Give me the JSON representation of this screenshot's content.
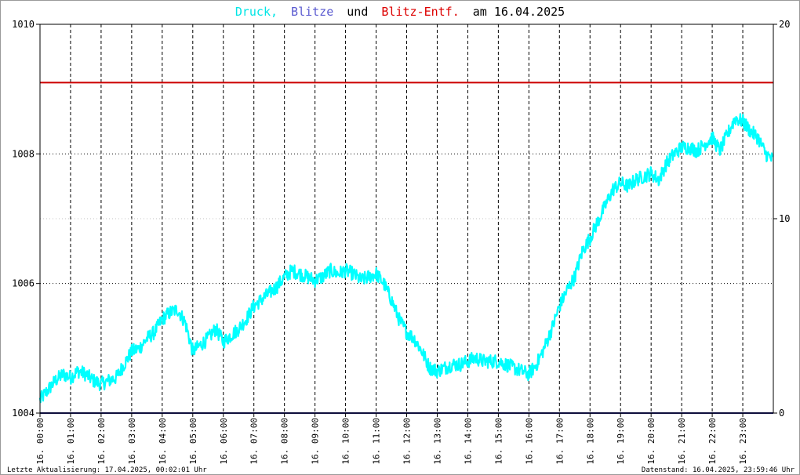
{
  "title": {
    "parts": [
      {
        "text": "Druck,",
        "color": "#00e5e5"
      },
      {
        "text": "Blitze",
        "color": "#5a5ad0"
      },
      {
        "text": "und",
        "color": "#000000"
      },
      {
        "text": "Blitz-Entf.",
        "color": "#dd0000"
      },
      {
        "text": "am 16.04.2025",
        "color": "#000000"
      }
    ]
  },
  "footer": {
    "left": "Letzte Aktualisierung: 17.04.2025, 00:02:01 Uhr",
    "right": "Datenstand: 16.04.2025, 23:59:46 Uhr"
  },
  "chart_data": {
    "type": "line",
    "title": "Druck, Blitze und Blitz-Entf. am 16.04.2025",
    "x_unit": "hour of 16.04.2025",
    "xlim": [
      0,
      24
    ],
    "x_ticks": [
      "16. 00:00",
      "16. 01:00",
      "16. 02:00",
      "16. 03:00",
      "16. 04:00",
      "16. 05:00",
      "16. 06:00",
      "16. 07:00",
      "16. 08:00",
      "16. 09:00",
      "16. 10:00",
      "16. 11:00",
      "16. 12:00",
      "16. 13:00",
      "16. 14:00",
      "16. 15:00",
      "16. 16:00",
      "16. 17:00",
      "16. 18:00",
      "16. 19:00",
      "16. 20:00",
      "16. 21:00",
      "16. 22:00",
      "16. 23:00"
    ],
    "y_left": {
      "ylim": [
        1004,
        1010
      ],
      "ticks": [
        "1004",
        "1006",
        "1008",
        "1010"
      ]
    },
    "y_right": {
      "ylim": [
        0,
        20
      ],
      "ticks": [
        "0",
        "10",
        "20"
      ]
    },
    "grid": true,
    "series": [
      {
        "name": "Druck",
        "axis": "left",
        "color": "#00ffff",
        "x": [
          0,
          0.25,
          0.5,
          0.75,
          1,
          1.25,
          1.5,
          1.75,
          2,
          2.25,
          2.5,
          2.75,
          3,
          3.25,
          3.5,
          3.75,
          4,
          4.25,
          4.5,
          4.75,
          5,
          5.25,
          5.5,
          5.75,
          6,
          6.25,
          6.5,
          6.75,
          7,
          7.25,
          7.5,
          7.75,
          8,
          8.25,
          8.5,
          8.75,
          9,
          9.25,
          9.5,
          9.75,
          10,
          10.25,
          10.5,
          10.75,
          11,
          11.25,
          11.5,
          11.75,
          12,
          12.25,
          12.5,
          12.75,
          13,
          13.25,
          13.5,
          13.75,
          14,
          14.25,
          14.5,
          14.75,
          15,
          15.25,
          15.5,
          15.75,
          16,
          16.25,
          16.5,
          16.75,
          17,
          17.25,
          17.5,
          17.75,
          18,
          18.25,
          18.5,
          18.75,
          19,
          19.25,
          19.5,
          19.75,
          20,
          20.25,
          20.5,
          20.75,
          21,
          21.25,
          21.5,
          21.75,
          22,
          22.25,
          22.5,
          22.75,
          23,
          23.25,
          23.5,
          23.75,
          24
        ],
        "y": [
          1004.2,
          1004.35,
          1004.5,
          1004.6,
          1004.55,
          1004.65,
          1004.6,
          1004.5,
          1004.45,
          1004.5,
          1004.55,
          1004.75,
          1004.95,
          1005.0,
          1005.15,
          1005.25,
          1005.45,
          1005.55,
          1005.6,
          1005.4,
          1004.95,
          1005.05,
          1005.15,
          1005.3,
          1005.1,
          1005.2,
          1005.3,
          1005.45,
          1005.65,
          1005.75,
          1005.85,
          1005.95,
          1006.1,
          1006.2,
          1006.15,
          1006.1,
          1006.05,
          1006.1,
          1006.2,
          1006.15,
          1006.2,
          1006.15,
          1006.05,
          1006.1,
          1006.15,
          1006.0,
          1005.75,
          1005.45,
          1005.25,
          1005.15,
          1004.95,
          1004.7,
          1004.65,
          1004.7,
          1004.75,
          1004.75,
          1004.8,
          1004.85,
          1004.8,
          1004.8,
          1004.8,
          1004.75,
          1004.7,
          1004.65,
          1004.6,
          1004.75,
          1005.0,
          1005.3,
          1005.65,
          1005.9,
          1006.1,
          1006.5,
          1006.7,
          1006.95,
          1007.2,
          1007.45,
          1007.55,
          1007.5,
          1007.6,
          1007.65,
          1007.7,
          1007.6,
          1007.85,
          1008.0,
          1008.1,
          1008.1,
          1008.05,
          1008.15,
          1008.25,
          1008.05,
          1008.3,
          1008.55,
          1008.5,
          1008.35,
          1008.25,
          1008.0,
          1007.9
        ]
      },
      {
        "name": "Blitz-Entf.",
        "axis": "right",
        "color": "#cc0000",
        "x": [
          0,
          24
        ],
        "y": [
          17,
          17
        ]
      },
      {
        "name": "Blitze",
        "axis": "right",
        "color": "#1c1c78",
        "x": [
          0,
          24
        ],
        "y": [
          0,
          0
        ]
      }
    ]
  }
}
